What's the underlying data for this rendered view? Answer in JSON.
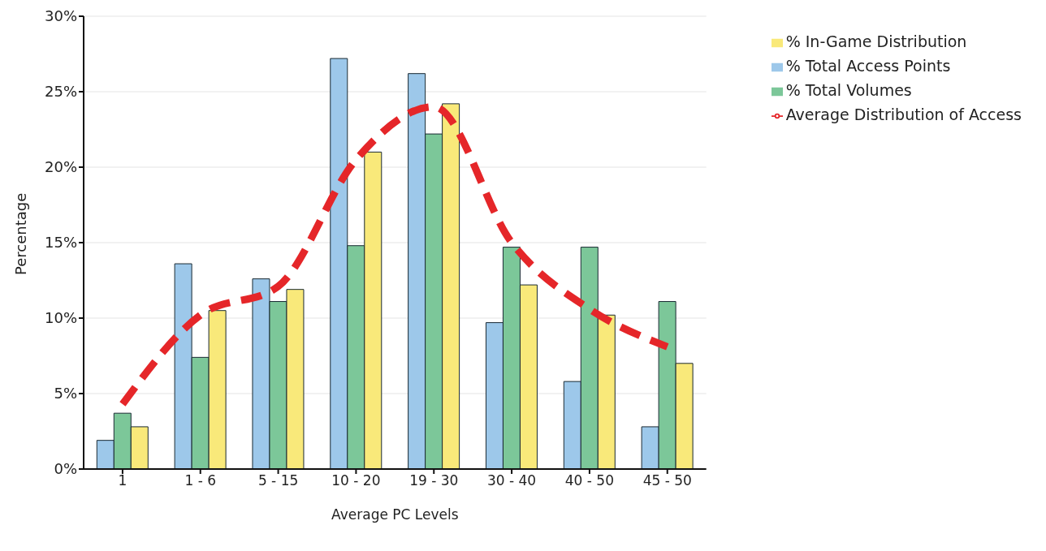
{
  "chart_data": {
    "type": "bar",
    "xlabel": "Average PC Levels",
    "ylabel": "Percentage",
    "categories": [
      "1",
      "1 - 6",
      "5 - 15",
      "10 - 20",
      "19 - 30",
      "30 - 40",
      "40 - 50",
      "45 - 50"
    ],
    "series": [
      {
        "name": "% Total Access Points",
        "color": "#9dc8ea",
        "values": [
          1.9,
          13.6,
          12.6,
          27.2,
          26.2,
          9.7,
          5.8,
          2.8
        ]
      },
      {
        "name": "% Total Volumes",
        "color": "#7cc799",
        "values": [
          3.7,
          7.4,
          11.1,
          14.8,
          22.2,
          14.7,
          14.7,
          11.1
        ]
      },
      {
        "name": "% In-Game Distribution",
        "color": "#f9e97a",
        "values": [
          2.8,
          10.5,
          11.9,
          21.0,
          24.2,
          12.2,
          10.2,
          7.0
        ]
      },
      {
        "name": "Average Distribution of Access",
        "type": "line",
        "color": "#e52629",
        "line_style": "dashed",
        "values": [
          4.3,
          10.2,
          12.1,
          20.5,
          24.0,
          15.0,
          10.6,
          8.1
        ]
      }
    ],
    "ylim": [
      0,
      30
    ],
    "yticks": [
      {
        "value": 0,
        "label": "0%"
      },
      {
        "value": 5,
        "label": "5%"
      },
      {
        "value": 10,
        "label": "10%"
      },
      {
        "value": 15,
        "label": "15%"
      },
      {
        "value": 20,
        "label": "20%"
      },
      {
        "value": 25,
        "label": "25%"
      },
      {
        "value": 30,
        "label": "30%"
      }
    ],
    "grid": "y",
    "legend": "top right"
  }
}
